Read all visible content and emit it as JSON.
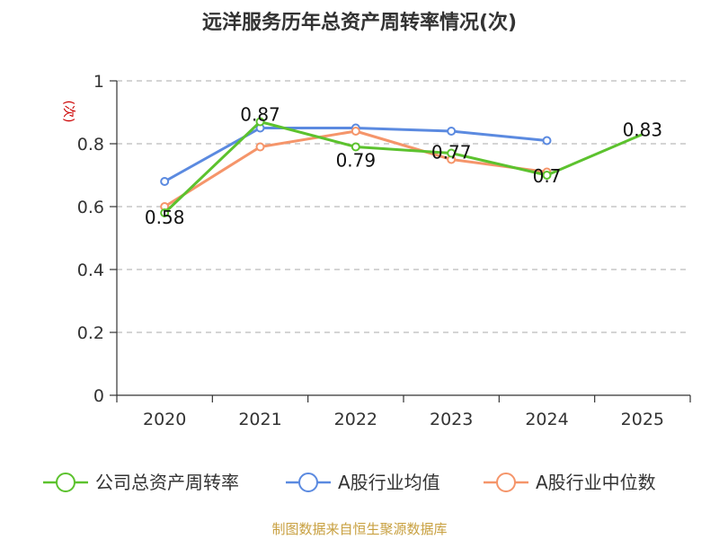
{
  "title": "远洋服务历年总资产周转率情况(次)",
  "unit": "(次)",
  "source": "制图数据来自恒生聚源数据库",
  "colors": {
    "company": "#5cc22e",
    "avg": "#5b8ae0",
    "median": "#f5956a",
    "grid": "#bbbbbb",
    "axis": "#333333"
  },
  "chart_data": {
    "type": "line",
    "title": "远洋服务历年总资产周转率情况(次)",
    "ylabel": "(次)",
    "xlabel": "",
    "categories": [
      "2020",
      "2021",
      "2022",
      "2023",
      "2024",
      "2025"
    ],
    "ylim": [
      0,
      1
    ],
    "yticks": [
      "0",
      "0.2",
      "0.4",
      "0.6",
      "0.8",
      "1"
    ],
    "grid": true,
    "legend": "bottom",
    "series": [
      {
        "name": "公司总资产周转率",
        "values": [
          0.58,
          0.87,
          0.79,
          0.77,
          0.7,
          0.83
        ],
        "labels": [
          "0.58",
          "0.87",
          "0.79",
          "0.77",
          "0.7",
          "0.83"
        ]
      },
      {
        "name": "A股行业均值",
        "values": [
          0.68,
          0.85,
          0.85,
          0.84,
          0.81,
          null
        ]
      },
      {
        "name": "A股行业中位数",
        "values": [
          0.6,
          0.79,
          0.84,
          0.75,
          0.71,
          null
        ]
      }
    ]
  }
}
